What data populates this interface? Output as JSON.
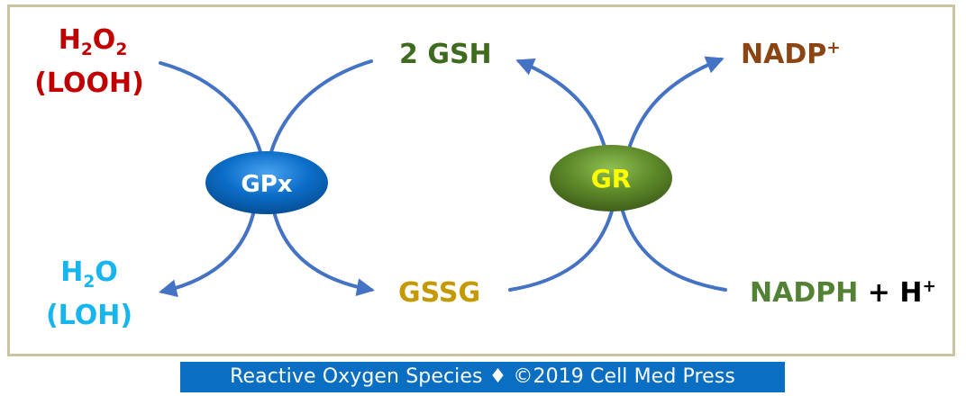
{
  "labels": {
    "h2o2_prefix": "H",
    "h2o2_sub1": "2",
    "h2o2_mid": "O",
    "h2o2_sub2": "2",
    "looh": "(LOOH)",
    "gsh": "2 GSH",
    "nadp_base": "NADP",
    "nadp_sup": "+",
    "h2o_prefix": "H",
    "h2o_sub": "2",
    "h2o_suffix": "O",
    "loh": "(LOH)",
    "gssg": "GSSG",
    "nadph": "NADPH",
    "plus_h": " + H",
    "plus_h_sup": "+"
  },
  "enzymes": {
    "gpx": "GPx",
    "gr": "GR"
  },
  "caption": {
    "text_before": "Reactive Oxygen Species",
    "separator": "♦",
    "text_after": "©2019 Cell Med Press"
  },
  "colors": {
    "h2o2": "#c00000",
    "gsh": "#3f6b1e",
    "nadp": "#8b4513",
    "h2o": "#17b5ee",
    "gssg": "#c49a00",
    "nadph": "#548235",
    "arrow": "#4472c4",
    "gpx_fill": "#0b6dc8",
    "gr_fill": "#5e8a2a",
    "gr_text": "#ffff00",
    "caption_bg": "#0a6fc2",
    "frame": "#cbc4a0"
  }
}
